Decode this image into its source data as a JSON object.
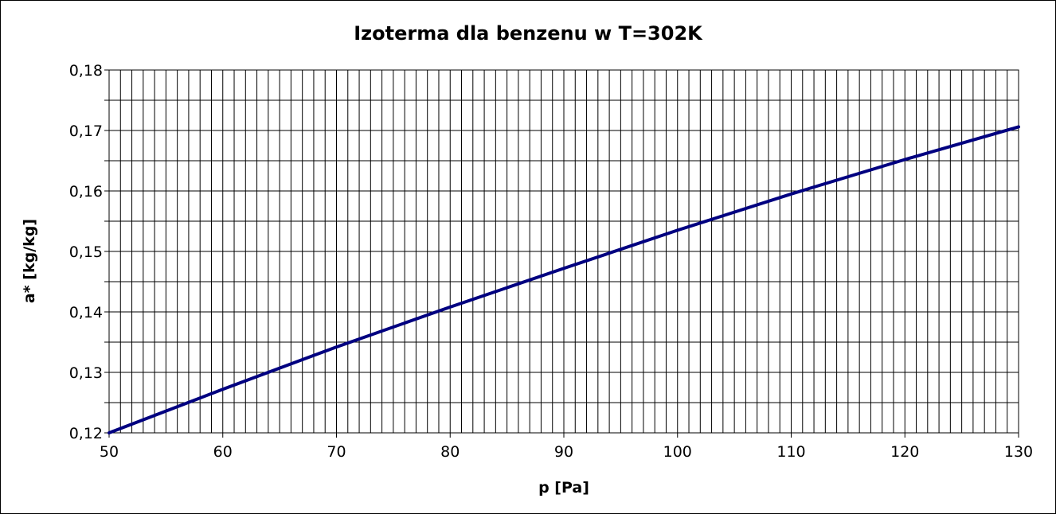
{
  "chart_data": {
    "type": "line",
    "title": "Izoterma dla benzenu w T=302K",
    "xlabel": "p [Pa]",
    "ylabel": "a* [kg/kg]",
    "xlim": [
      50,
      130
    ],
    "ylim": [
      0.12,
      0.18
    ],
    "x_ticks": [
      "50",
      "60",
      "70",
      "80",
      "90",
      "100",
      "110",
      "120",
      "130"
    ],
    "y_ticks": [
      "0,12",
      "0,13",
      "0,14",
      "0,15",
      "0,16",
      "0,17",
      "0,18"
    ],
    "grid": true,
    "series": [
      {
        "color": "#000080",
        "x": [
          50,
          60,
          70,
          80,
          90,
          100,
          110,
          120,
          130
        ],
        "values": [
          0.12,
          0.1272,
          0.1342,
          0.1408,
          0.1472,
          0.1535,
          0.1595,
          0.1652,
          0.1706
        ]
      }
    ]
  }
}
